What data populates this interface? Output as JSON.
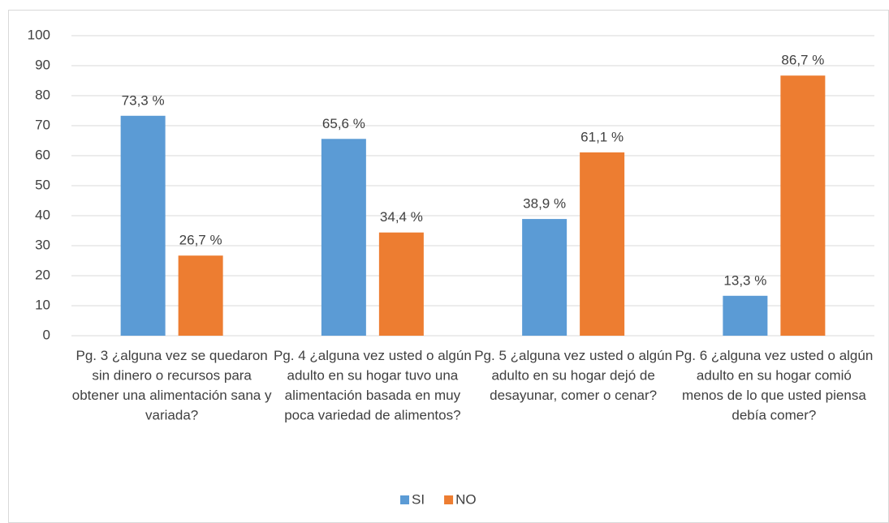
{
  "chart_data": {
    "type": "bar",
    "categories": [
      "Pg. 3 ¿alguna vez se quedaron sin dinero o recursos para obtener una alimentación sana y variada?",
      "Pg. 4 ¿alguna vez usted o algún adulto en su hogar tuvo una alimentación basada en muy poca variedad de alimentos?",
      "Pg. 5 ¿alguna vez usted o algún adulto en su hogar dejó de desayunar, comer o cenar?",
      "Pg. 6 ¿alguna vez usted o algún adulto en su hogar comió menos de lo que usted piensa debía comer?"
    ],
    "series": [
      {
        "name": "SI",
        "color": "#5b9bd5",
        "values": [
          73.3,
          65.6,
          38.9,
          13.3
        ],
        "value_labels": [
          "73,3 %",
          "65,6 %",
          "38,9 %",
          "13,3 %"
        ]
      },
      {
        "name": "NO",
        "color": "#ed7d31",
        "values": [
          26.7,
          34.4,
          61.1,
          86.7
        ],
        "value_labels": [
          "26,7 %",
          "34,4 %",
          "61,1 %",
          "86,7 %"
        ]
      }
    ],
    "ylim": [
      0,
      100
    ],
    "yticks": [
      0,
      10,
      20,
      30,
      40,
      50,
      60,
      70,
      80,
      90,
      100
    ],
    "grid": true,
    "legend": "bottom"
  }
}
